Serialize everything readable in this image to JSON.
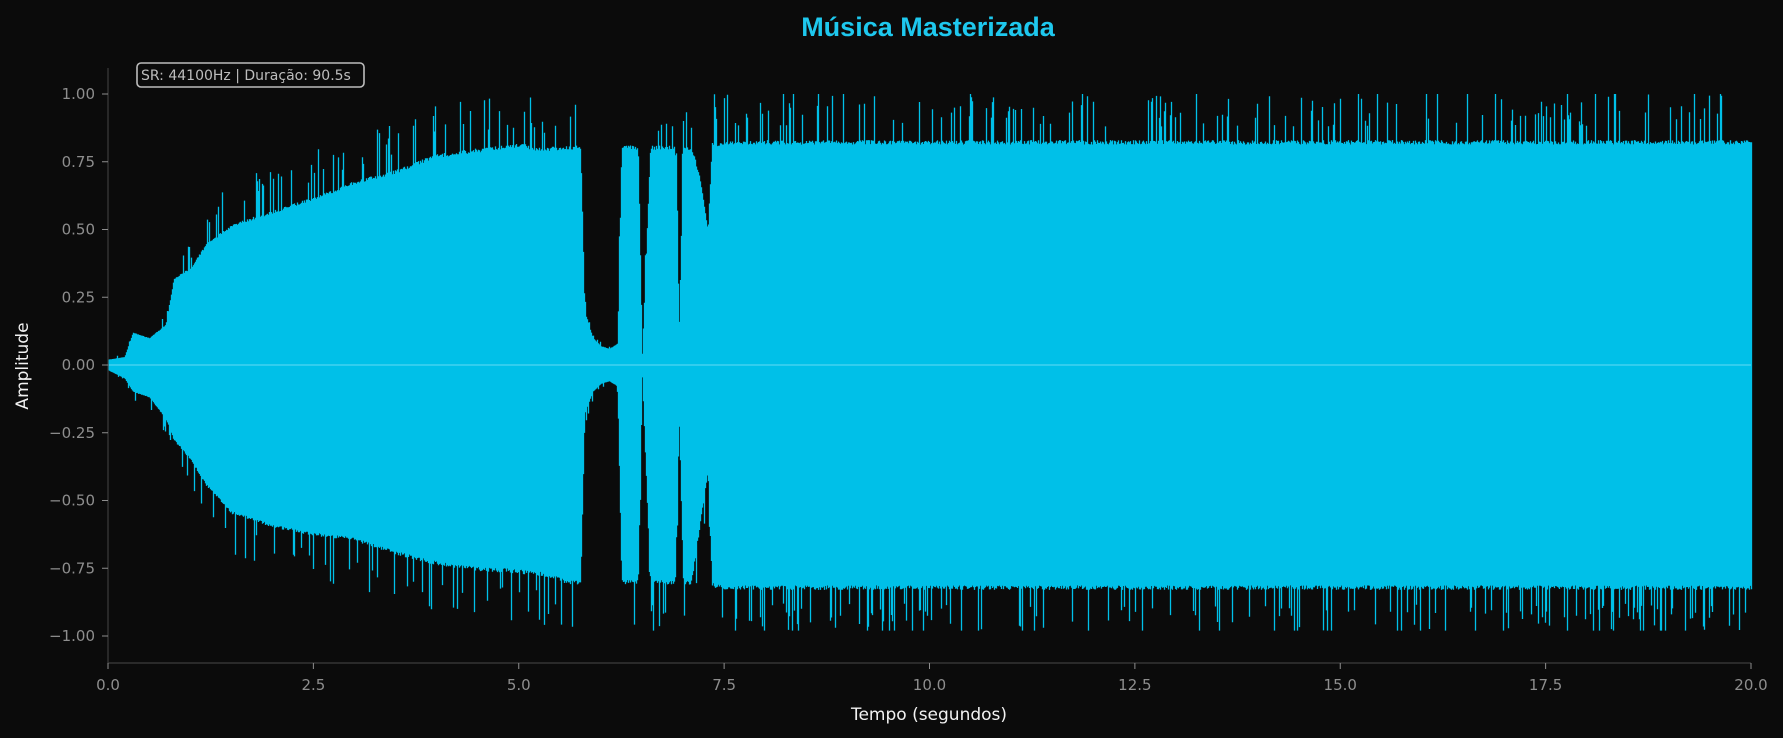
{
  "colors": {
    "background": "#0b0b0b",
    "waveform": "#00c0e8",
    "title": "#1ec8ee",
    "axis": "#8e8e8e",
    "spine": "#3d3d3d",
    "label": "#f2f2f2"
  },
  "chart_data": {
    "type": "area",
    "title": "Música Masterizada",
    "xlabel": "Tempo (segundos)",
    "ylabel": "Amplitude",
    "annotation": "SR: 44100Hz | Duração: 90.5s",
    "xlim": [
      0,
      20
    ],
    "ylim": [
      -1.1,
      1.1
    ],
    "xticks": [
      "0.0",
      "2.5",
      "5.0",
      "7.5",
      "10.0",
      "12.5",
      "15.0",
      "17.5",
      "20.0"
    ],
    "yticks": [
      "1.00",
      "0.75",
      "0.50",
      "0.25",
      "0.00",
      "−0.25",
      "−0.50",
      "−0.75",
      "−1.00"
    ],
    "grid": false,
    "series": [
      {
        "values_description_free": true,
        "x": [
          0.0,
          0.2,
          0.3,
          0.5,
          0.7,
          0.8,
          1.0,
          1.2,
          1.5,
          2.0,
          2.5,
          3.0,
          3.5,
          4.0,
          4.5,
          5.0,
          5.3,
          5.5,
          5.6,
          5.75,
          5.8,
          5.9,
          6.0,
          6.1,
          6.2,
          6.25,
          6.3,
          6.45,
          6.5,
          6.6,
          6.65,
          6.7,
          6.9,
          6.95,
          7.0,
          7.1,
          7.2,
          7.3,
          7.35,
          7.5,
          10.0,
          12.5,
          15.0,
          17.5,
          20.0
        ],
        "envelope_pos": [
          0.02,
          0.03,
          0.12,
          0.1,
          0.15,
          0.32,
          0.36,
          0.45,
          0.52,
          0.57,
          0.62,
          0.68,
          0.72,
          0.78,
          0.8,
          0.82,
          0.8,
          0.81,
          0.81,
          0.81,
          0.2,
          0.1,
          0.07,
          0.06,
          0.08,
          0.81,
          0.81,
          0.81,
          0.04,
          0.81,
          0.81,
          0.81,
          0.81,
          0.15,
          0.81,
          0.81,
          0.7,
          0.5,
          0.82,
          0.83,
          0.83,
          0.83,
          0.83,
          0.83,
          0.83
        ],
        "envelope_neg": [
          -0.02,
          -0.05,
          -0.1,
          -0.12,
          -0.2,
          -0.28,
          -0.35,
          -0.45,
          -0.55,
          -0.6,
          -0.63,
          -0.65,
          -0.7,
          -0.74,
          -0.76,
          -0.77,
          -0.78,
          -0.8,
          -0.81,
          -0.81,
          -0.18,
          -0.1,
          -0.07,
          -0.06,
          -0.08,
          -0.81,
          -0.81,
          -0.81,
          -0.04,
          -0.81,
          -0.81,
          -0.81,
          -0.81,
          -0.2,
          -0.81,
          -0.81,
          -0.6,
          -0.4,
          -0.82,
          -0.83,
          -0.83,
          -0.83,
          -0.83,
          -0.83,
          -0.83
        ]
      }
    ]
  }
}
